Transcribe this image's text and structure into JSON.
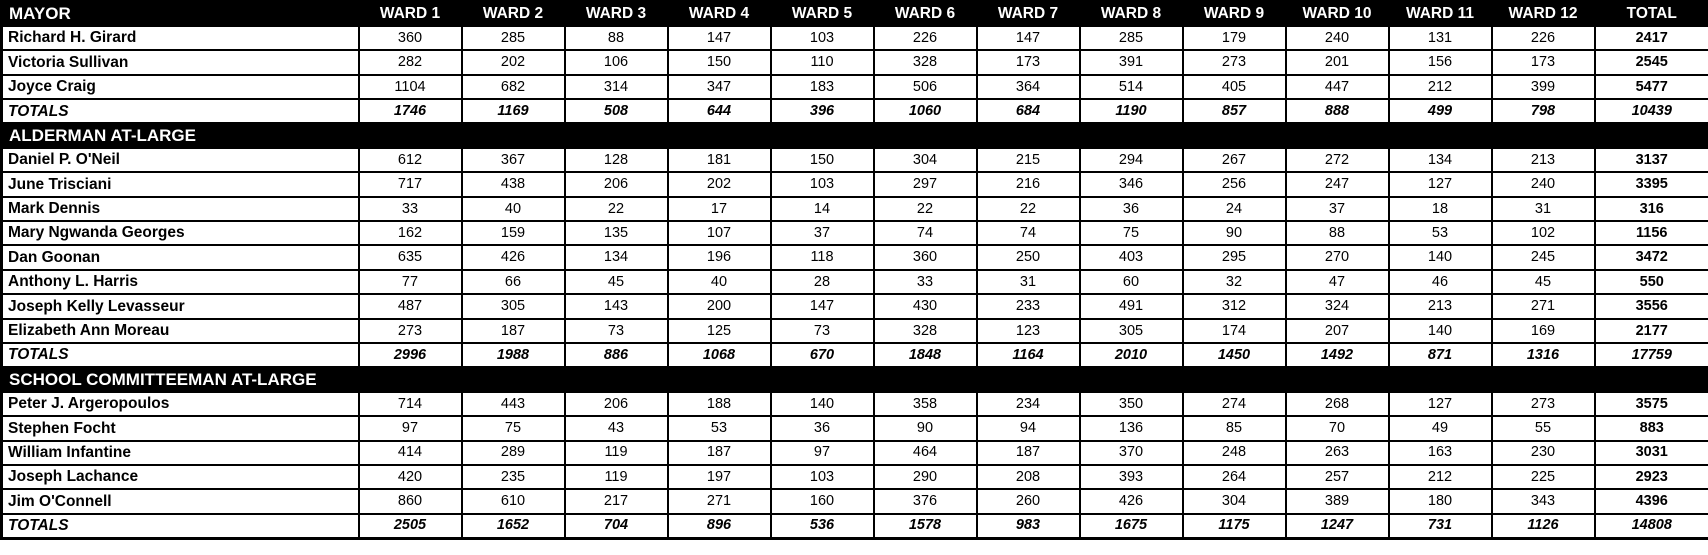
{
  "table": {
    "columns": {
      "wards": [
        "WARD 1",
        "WARD 2",
        "WARD 3",
        "WARD 4",
        "WARD 5",
        "WARD 6",
        "WARD 7",
        "WARD 8",
        "WARD 9",
        "WARD 10",
        "WARD 11",
        "WARD 12"
      ],
      "total": "TOTAL"
    },
    "totals_label": "TOTALS",
    "sections": [
      {
        "title": "MAYOR",
        "rows": [
          {
            "name": "Richard H. Girard",
            "values": [
              360,
              285,
              88,
              147,
              103,
              226,
              147,
              285,
              179,
              240,
              131,
              226
            ],
            "total": 2417
          },
          {
            "name": "Victoria Sullivan",
            "values": [
              282,
              202,
              106,
              150,
              110,
              328,
              173,
              391,
              273,
              201,
              156,
              173
            ],
            "total": 2545
          },
          {
            "name": "Joyce Craig",
            "values": [
              1104,
              682,
              314,
              347,
              183,
              506,
              364,
              514,
              405,
              447,
              212,
              399
            ],
            "total": 5477
          }
        ],
        "totals": {
          "values": [
            1746,
            1169,
            508,
            644,
            396,
            1060,
            684,
            1190,
            857,
            888,
            499,
            798
          ],
          "total": 10439
        }
      },
      {
        "title": "ALDERMAN AT-LARGE",
        "rows": [
          {
            "name": "Daniel P. O'Neil",
            "values": [
              612,
              367,
              128,
              181,
              150,
              304,
              215,
              294,
              267,
              272,
              134,
              213
            ],
            "total": 3137
          },
          {
            "name": "June Trisciani",
            "values": [
              717,
              438,
              206,
              202,
              103,
              297,
              216,
              346,
              256,
              247,
              127,
              240
            ],
            "total": 3395
          },
          {
            "name": "Mark Dennis",
            "values": [
              33,
              40,
              22,
              17,
              14,
              22,
              22,
              36,
              24,
              37,
              18,
              31
            ],
            "total": 316
          },
          {
            "name": "Mary Ngwanda Georges",
            "values": [
              162,
              159,
              135,
              107,
              37,
              74,
              74,
              75,
              90,
              88,
              53,
              102
            ],
            "total": 1156
          },
          {
            "name": "Dan Goonan",
            "values": [
              635,
              426,
              134,
              196,
              118,
              360,
              250,
              403,
              295,
              270,
              140,
              245
            ],
            "total": 3472
          },
          {
            "name": "Anthony L. Harris",
            "values": [
              77,
              66,
              45,
              40,
              28,
              33,
              31,
              60,
              32,
              47,
              46,
              45
            ],
            "total": 550
          },
          {
            "name": "Joseph Kelly Levasseur",
            "values": [
              487,
              305,
              143,
              200,
              147,
              430,
              233,
              491,
              312,
              324,
              213,
              271
            ],
            "total": 3556
          },
          {
            "name": "Elizabeth Ann Moreau",
            "values": [
              273,
              187,
              73,
              125,
              73,
              328,
              123,
              305,
              174,
              207,
              140,
              169
            ],
            "total": 2177
          }
        ],
        "totals": {
          "values": [
            2996,
            1988,
            886,
            1068,
            670,
            1848,
            1164,
            2010,
            1450,
            1492,
            871,
            1316
          ],
          "total": 17759
        }
      },
      {
        "title": "SCHOOL COMMITTEEMAN AT-LARGE",
        "rows": [
          {
            "name": "Peter J. Argeropoulos",
            "values": [
              714,
              443,
              206,
              188,
              140,
              358,
              234,
              350,
              274,
              268,
              127,
              273
            ],
            "total": 3575
          },
          {
            "name": "Stephen Focht",
            "values": [
              97,
              75,
              43,
              53,
              36,
              90,
              94,
              136,
              85,
              70,
              49,
              55
            ],
            "total": 883
          },
          {
            "name": "William Infantine",
            "values": [
              414,
              289,
              119,
              187,
              97,
              464,
              187,
              370,
              248,
              263,
              163,
              230
            ],
            "total": 3031
          },
          {
            "name": "Joseph Lachance",
            "values": [
              420,
              235,
              119,
              197,
              103,
              290,
              208,
              393,
              264,
              257,
              212,
              225
            ],
            "total": 2923
          },
          {
            "name": "Jim O'Connell",
            "values": [
              860,
              610,
              217,
              271,
              160,
              376,
              260,
              426,
              304,
              389,
              180,
              343
            ],
            "total": 4396
          }
        ],
        "totals": {
          "values": [
            2505,
            1652,
            704,
            896,
            536,
            1578,
            983,
            1675,
            1175,
            1247,
            731,
            1126
          ],
          "total": 14808
        }
      }
    ]
  },
  "colors": {
    "header_bg": "#000000",
    "header_text": "#ffffff",
    "body_bg": "#ffffff",
    "body_text": "#000000",
    "border": "#000000"
  }
}
